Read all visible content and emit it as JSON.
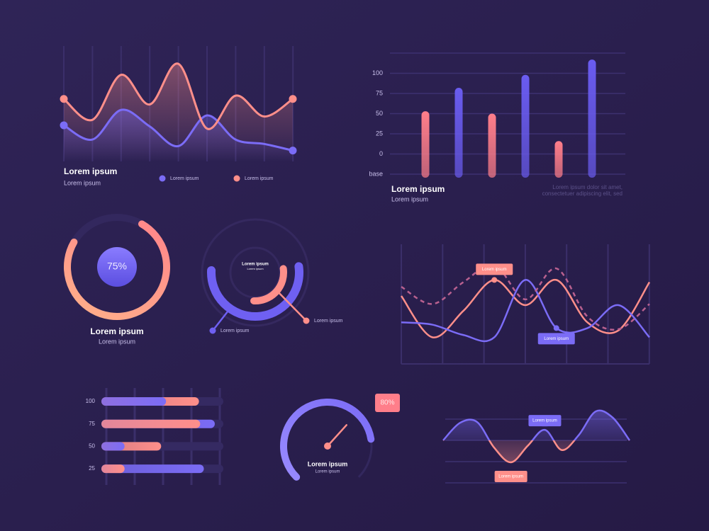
{
  "chart_data": [
    {
      "type": "line",
      "title": "Lorem ipsum",
      "subtitle": "Lorem ipsum",
      "ylim": [
        0,
        100
      ],
      "series": [
        {
          "name": "Lorem ipsum",
          "color": "#7b6cf6",
          "values": [
            31,
            18,
            45,
            30,
            12,
            40,
            18,
            14,
            8
          ]
        },
        {
          "name": "Lorem ipsum",
          "color": "#ff8f8a",
          "values": [
            55,
            36,
            77,
            50,
            87,
            28,
            58,
            39,
            55
          ]
        }
      ]
    },
    {
      "type": "bar",
      "title": "Lorem ipsum",
      "subtitle": "Lorem ipsum",
      "annotation": [
        "Lorem ipsum dolor sit amet,",
        "consectetuer adipiscing elit, sed"
      ],
      "ylim": [
        -25,
        125
      ],
      "yticks": [
        {
          "value": -25,
          "label": "base"
        },
        0,
        25,
        50,
        75,
        100
      ],
      "values": [
        53,
        82,
        50,
        98,
        16,
        117
      ],
      "colors": [
        "#ff7e8a",
        "#6a5cf0",
        "#ff7e8a",
        "#6a5cf0",
        "#ff7e8a",
        "#6a5cf0"
      ]
    },
    {
      "type": "donut",
      "title": "Lorem ipsum",
      "subtitle": "Lorem ipsum",
      "values": [
        75
      ],
      "value_labels": [
        "75%"
      ],
      "color": "#ff8a8a"
    },
    {
      "type": "radial",
      "center_title": "Lorem ipsum",
      "center_subtitle": "Lorem ipsum",
      "series": [
        {
          "name": "Lorem ipsum",
          "color": "#6f60f2",
          "values": [
            53
          ]
        },
        {
          "name": "Lorem ipsum",
          "color": "#ff8f8a",
          "values": [
            28
          ]
        }
      ]
    },
    {
      "type": "multi_line",
      "annotations": [
        "Lorem ipsum",
        "Lorem ipsum"
      ],
      "ylim": [
        0,
        100
      ],
      "series": [
        {
          "color": "#ff8f8a",
          "values": [
            58,
            22,
            45,
            72,
            50,
            72,
            35,
            28,
            70
          ]
        },
        {
          "color": "#7b6cf6",
          "values": [
            35,
            33,
            24,
            22,
            72,
            30,
            30,
            50,
            22
          ]
        },
        {
          "color": "#b8608f",
          "style": "dashed",
          "values": [
            66,
            51,
            70,
            85,
            55,
            82,
            40,
            29,
            51
          ]
        }
      ]
    },
    {
      "type": "progress",
      "categories": [
        "100",
        "75",
        "50",
        "25"
      ],
      "xlim": [
        0,
        100
      ],
      "series": [
        {
          "color": "#7b6cf6",
          "values": [
            53,
            93,
            19,
            84
          ]
        },
        {
          "color": "#ff8f8a",
          "values": [
            80,
            81,
            49,
            19
          ]
        }
      ]
    },
    {
      "type": "gauge",
      "title": "Lorem ipsum",
      "subtitle": "Lorem ipsum",
      "values": [
        80
      ],
      "value_labels": [
        "80%"
      ],
      "color": "#7b6cf6"
    },
    {
      "type": "wave",
      "annotations": [
        "Lorem ipsum",
        "Lorem ipsum"
      ],
      "ylim": [
        -50,
        50
      ],
      "values": [
        0,
        20,
        21,
        -8,
        -25,
        -6,
        12,
        -11,
        6,
        33,
        26,
        0
      ],
      "colors": [
        "#7b6cf6",
        "#ff8f8a"
      ]
    }
  ]
}
